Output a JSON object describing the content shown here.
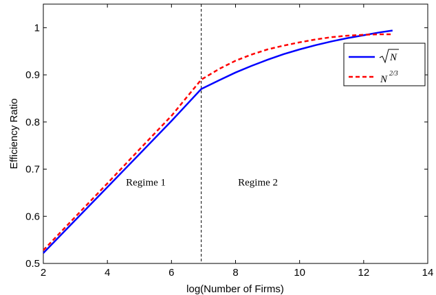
{
  "chart_data": {
    "type": "line",
    "xlabel": "log(Number of Firms)",
    "ylabel": "Efficiency Ratio",
    "xlim": [
      2,
      14
    ],
    "ylim": [
      0.5,
      1.05
    ],
    "xticks": [
      "2",
      "4",
      "6",
      "8",
      "10",
      "12",
      "14"
    ],
    "yticks": [
      "0.5",
      "0.6",
      "0.7",
      "0.8",
      "0.9",
      "1"
    ],
    "xtick_values": [
      2,
      4,
      6,
      8,
      10,
      12,
      14
    ],
    "ytick_values": [
      0.5,
      0.6,
      0.7,
      0.8,
      0.9,
      1.0
    ],
    "grid": false,
    "legend_position": "top-right",
    "vline_x": 6.93,
    "annotations": [
      {
        "text": "Regime 1",
        "x": 5.2,
        "y": 0.665
      },
      {
        "text": "Regime 2",
        "x": 8.7,
        "y": 0.665
      }
    ],
    "series": [
      {
        "name": "sqrt(N)",
        "legend_base": "N",
        "legend_style": "sqrt",
        "color": "#0000ff",
        "dash": "solid",
        "x": [
          2.0,
          3.0,
          4.0,
          5.0,
          6.0,
          6.93,
          7.5,
          8.0,
          8.5,
          9.0,
          9.5,
          10.0,
          10.5,
          11.0,
          11.5,
          12.0,
          12.5,
          12.9
        ],
        "y": [
          0.522,
          0.592,
          0.662,
          0.732,
          0.802,
          0.87,
          0.889,
          0.905,
          0.919,
          0.932,
          0.944,
          0.954,
          0.963,
          0.971,
          0.978,
          0.984,
          0.99,
          0.994
        ]
      },
      {
        "name": "N^(2/3)",
        "legend_base": "N",
        "legend_sup": "2/3",
        "legend_style": "power",
        "color": "#ff0000",
        "dash": "dashed",
        "x": [
          2.0,
          3.0,
          4.0,
          5.0,
          6.0,
          6.93,
          7.5,
          8.0,
          8.5,
          9.0,
          9.5,
          10.0,
          10.5,
          11.0,
          11.5,
          12.0,
          12.5,
          12.9
        ],
        "y": [
          0.528,
          0.599,
          0.67,
          0.742,
          0.813,
          0.89,
          0.913,
          0.93,
          0.943,
          0.954,
          0.962,
          0.969,
          0.975,
          0.98,
          0.983,
          0.985,
          0.986,
          0.986
        ]
      }
    ]
  }
}
